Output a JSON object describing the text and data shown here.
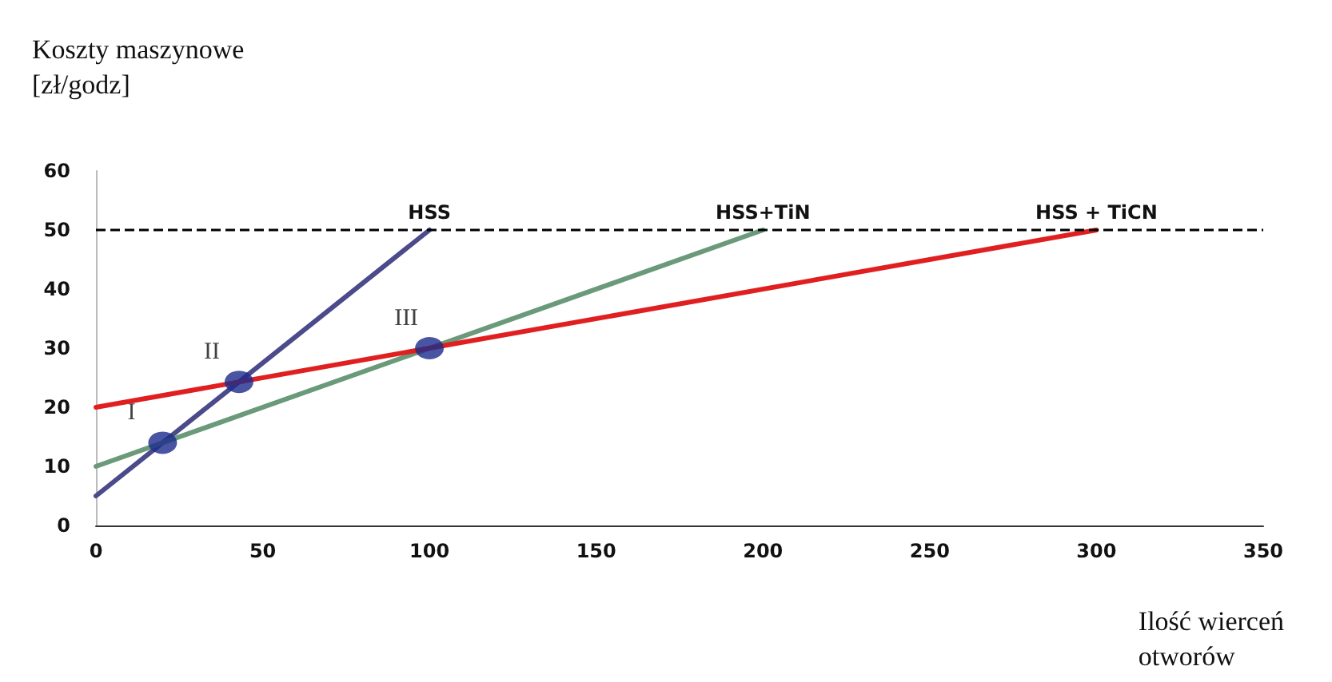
{
  "chart_data": {
    "type": "line",
    "xlabel": "Ilość wierceń\notworów",
    "ylabel": "Koszty maszynowe\n[zł/godz]",
    "series": [
      {
        "name": "HSS",
        "color": "#4b4a8a",
        "x": [
          0,
          100
        ],
        "values": [
          5,
          50
        ]
      },
      {
        "name": "HSS+TiN",
        "color": "#6a9a7a",
        "x": [
          0,
          200
        ],
        "values": [
          10,
          50
        ]
      },
      {
        "name": "HSS + TiCN",
        "color": "#e02020",
        "x": [
          0,
          300
        ],
        "values": [
          20,
          50
        ]
      },
      {
        "type": "scatter",
        "color": "#1c2a8c",
        "x": [
          20,
          42.9,
          100
        ],
        "values": [
          14,
          24.3,
          30
        ],
        "marker": "circle"
      }
    ],
    "annotations": [
      {
        "text": "I",
        "x": 20,
        "y": 14
      },
      {
        "text": "II",
        "x": 42.9,
        "y": 24.3
      },
      {
        "text": "III",
        "x": 100,
        "y": 30
      }
    ],
    "ref_lines": [
      {
        "axis": "y",
        "value": 50,
        "color": "#000000",
        "line_style": "dashed"
      }
    ],
    "xlim": [
      0,
      350
    ],
    "xticks": [
      0,
      50,
      100,
      150,
      200,
      250,
      300,
      350
    ],
    "ylim": [
      0,
      60
    ],
    "yticks": [
      0,
      10,
      20,
      30,
      40,
      50,
      60
    ],
    "grid": false,
    "legend": false,
    "line_style": "solid"
  }
}
